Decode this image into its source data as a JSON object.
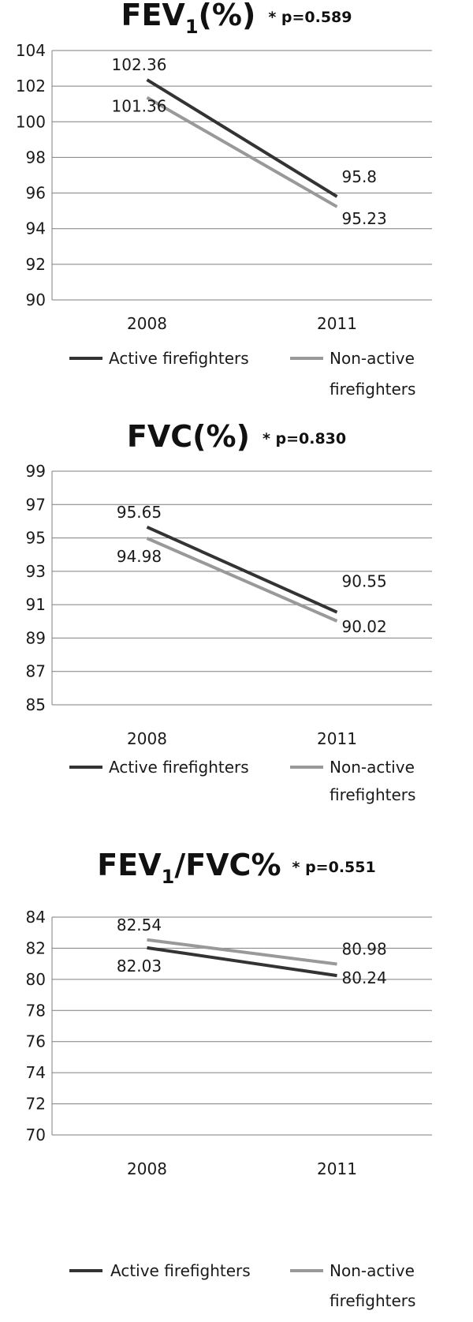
{
  "colors": {
    "active": "#333333",
    "non_active": "#999999",
    "grid": "#7f7f7f"
  },
  "legend": {
    "active": "Active firefighters",
    "non_active_line1": "Non-active",
    "non_active_line2": "firefighters"
  },
  "chart_data": [
    {
      "type": "line",
      "title_main": "FEV",
      "title_sub": "1",
      "title_rest": "(%)",
      "pvalue": "* p=0.589",
      "categories": [
        "2008",
        "2011"
      ],
      "ylim": [
        90,
        104
      ],
      "yticks": [
        90,
        92,
        94,
        96,
        98,
        100,
        102,
        104
      ],
      "series": [
        {
          "name": "Active firefighters",
          "values": [
            102.36,
            95.8
          ],
          "labels": [
            "102.36",
            "95.8"
          ]
        },
        {
          "name": "Non-active firefighters",
          "values": [
            101.36,
            95.23
          ],
          "labels": [
            "101.36",
            "95.23"
          ]
        }
      ],
      "grid": true,
      "legend": "bottom"
    },
    {
      "type": "line",
      "title_main": "FVC(%)",
      "title_sub": "",
      "title_rest": "",
      "pvalue": "* p=0.830",
      "categories": [
        "2008",
        "2011"
      ],
      "ylim": [
        85,
        99
      ],
      "yticks": [
        85,
        87,
        89,
        91,
        93,
        95,
        97,
        99
      ],
      "series": [
        {
          "name": "Active firefighters",
          "values": [
            95.65,
            90.55
          ],
          "labels": [
            "95.65",
            "90.55"
          ]
        },
        {
          "name": "Non-active firefighters",
          "values": [
            94.98,
            90.02
          ],
          "labels": [
            "94.98",
            "90.02"
          ]
        }
      ],
      "grid": true,
      "legend": "bottom"
    },
    {
      "type": "line",
      "title_main": "FEV",
      "title_sub": "1",
      "title_rest": "/FVC%",
      "pvalue": "* p=0.551",
      "categories": [
        "2008",
        "2011"
      ],
      "ylim": [
        70,
        84
      ],
      "yticks": [
        70,
        72,
        74,
        76,
        78,
        80,
        82,
        84
      ],
      "series": [
        {
          "name": "Active firefighters",
          "values": [
            82.03,
            80.24
          ],
          "labels": [
            "82.03",
            "80.24"
          ]
        },
        {
          "name": "Non-active firefighters",
          "values": [
            82.54,
            80.98
          ],
          "labels": [
            "82.54",
            "80.98"
          ]
        }
      ],
      "grid": true,
      "legend": "bottom"
    }
  ]
}
